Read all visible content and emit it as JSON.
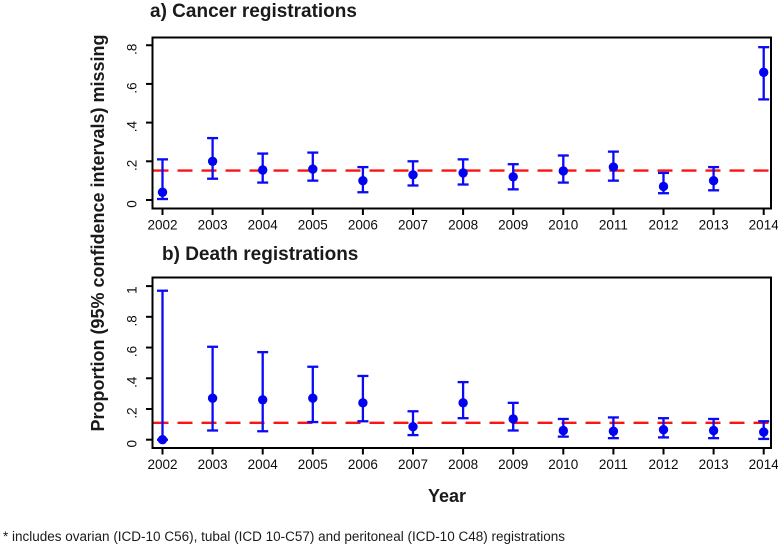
{
  "figure": {
    "y_axis_title": "Proportion (95% confidence intervals) missing",
    "x_axis_title": "Year",
    "footnote": "* includes ovarian (ICD-10 C56), tubal (ICD 10-C57) and peritoneal (ICD-10 C48) registrations"
  },
  "colors": {
    "marker": "#0202f2",
    "error_bar": "#0a0af5",
    "reference_line": "#fb1414",
    "frame": "#000000",
    "text": "#1a1a1a"
  },
  "chart_data": [
    {
      "type": "scatter",
      "title": "a) Cancer registrations",
      "xlabel": "Year",
      "ylabel": "Proportion (95% confidence intervals) missing",
      "x": [
        2002,
        2003,
        2004,
        2005,
        2006,
        2007,
        2008,
        2009,
        2010,
        2011,
        2012,
        2013,
        2014
      ],
      "values": [
        0.04,
        0.2,
        0.155,
        0.16,
        0.1,
        0.13,
        0.14,
        0.12,
        0.15,
        0.17,
        0.07,
        0.1,
        0.66
      ],
      "ci_lower": [
        0.005,
        0.11,
        0.09,
        0.1,
        0.04,
        0.075,
        0.08,
        0.055,
        0.09,
        0.1,
        0.035,
        0.05,
        0.52
      ],
      "ci_upper": [
        0.21,
        0.32,
        0.24,
        0.245,
        0.17,
        0.2,
        0.21,
        0.185,
        0.23,
        0.25,
        0.14,
        0.17,
        0.79
      ],
      "reference_line_y": 0.152,
      "yticks": [
        0,
        0.2,
        0.4,
        0.6,
        0.8
      ],
      "ytick_labels": [
        "0",
        ".2",
        ".4",
        ".6",
        ".8"
      ],
      "ylim": [
        -0.044,
        0.84
      ],
      "grid": false,
      "legend": "none"
    },
    {
      "type": "scatter",
      "title": "b) Death registrations",
      "xlabel": "Year",
      "ylabel": "Proportion (95% confidence intervals) missing",
      "x": [
        2002,
        2003,
        2004,
        2005,
        2006,
        2007,
        2008,
        2009,
        2010,
        2011,
        2012,
        2013,
        2014
      ],
      "values": [
        0.0,
        0.27,
        0.26,
        0.27,
        0.24,
        0.085,
        0.24,
        0.135,
        0.06,
        0.055,
        0.065,
        0.06,
        0.05
      ],
      "ci_lower": [
        0.0,
        0.06,
        0.055,
        0.115,
        0.12,
        0.03,
        0.14,
        0.06,
        0.02,
        0.01,
        0.015,
        0.01,
        0.005
      ],
      "ci_upper": [
        0.97,
        0.605,
        0.57,
        0.475,
        0.415,
        0.185,
        0.375,
        0.24,
        0.135,
        0.145,
        0.14,
        0.135,
        0.12
      ],
      "reference_line_y": 0.11,
      "yticks": [
        0,
        0.2,
        0.4,
        0.6,
        0.8,
        1.0
      ],
      "ytick_labels": [
        "0",
        ".2",
        ".4",
        ".6",
        ".8",
        "1"
      ],
      "ylim": [
        -0.054,
        1.056
      ],
      "grid": false,
      "legend": "none"
    }
  ]
}
